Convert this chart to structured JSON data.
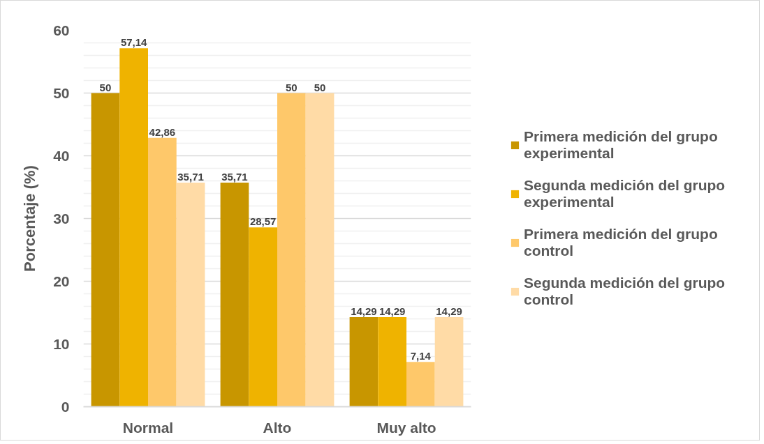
{
  "chart_data": {
    "type": "bar",
    "ylabel": "Porcentaje (%)",
    "categories": [
      "Normal",
      "Alto",
      "Muy alto"
    ],
    "series": [
      {
        "name": "Primera medición del grupo experimental",
        "color": "#c89600",
        "values": [
          50,
          35.71,
          14.29
        ],
        "value_labels": [
          "50",
          "35,71",
          "14,29"
        ]
      },
      {
        "name": "Segunda medición del grupo experimental",
        "color": "#efb300",
        "values": [
          57.14,
          28.57,
          14.29
        ],
        "value_labels": [
          "57,14",
          "28,57",
          "14,29"
        ]
      },
      {
        "name": "Primera medición del grupo control",
        "color": "#fec86a",
        "values": [
          42.86,
          50,
          7.14
        ],
        "value_labels": [
          "42,86",
          "50",
          "7,14"
        ]
      },
      {
        "name": "Segunda medición del grupo control",
        "color": "#ffdba6",
        "values": [
          35.71,
          50,
          14.29
        ],
        "value_labels": [
          "35,71",
          "50",
          "14,29"
        ]
      }
    ],
    "ylim": [
      0,
      60
    ],
    "yticks": [
      0,
      10,
      20,
      30,
      40,
      50,
      60
    ],
    "grid": "y",
    "legend": "right"
  }
}
